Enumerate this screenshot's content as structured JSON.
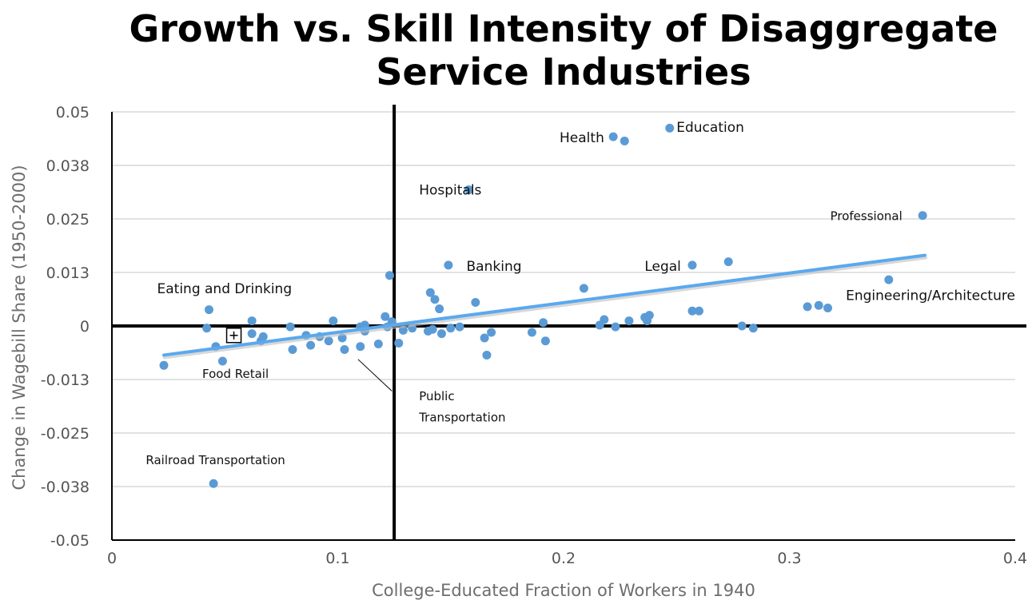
{
  "chart_data": {
    "type": "scatter",
    "title_lines": [
      "Growth vs. Skill Intensity of Disaggregate",
      "Service Industries"
    ],
    "xlabel": "College-Educated Fraction of Workers in 1940",
    "ylabel": "Change in Wagebill Share (1950-2000)",
    "xlim": [
      0,
      0.4
    ],
    "ylim": [
      -0.05,
      0.05
    ],
    "x_ticks": [
      0,
      0.1,
      0.2,
      0.3,
      0.4
    ],
    "x_tick_labels": [
      "0",
      "0.1",
      "0.2",
      "0.3",
      "0.4"
    ],
    "y_ticks": [
      0.05,
      0.0375,
      0.025,
      0.0125,
      0,
      -0.0125,
      -0.025,
      -0.0375,
      -0.05
    ],
    "y_tick_labels": [
      "0.05",
      "0.038",
      "0.025",
      "0.013",
      "0",
      "-0.013",
      "-0.025",
      "-0.038",
      "-0.05"
    ],
    "reference_lines": {
      "x": 0.125,
      "y": 0
    },
    "trendline": {
      "x": [
        0.023,
        0.36
      ],
      "y": [
        -0.0068,
        0.0165
      ]
    },
    "points": [
      {
        "x": 0.023,
        "y": -0.0092
      },
      {
        "x": 0.042,
        "y": -0.0005
      },
      {
        "x": 0.043,
        "y": 0.0038
      },
      {
        "x": 0.046,
        "y": -0.0048
      },
      {
        "x": 0.049,
        "y": -0.0082
      },
      {
        "x": 0.045,
        "y": -0.0368
      },
      {
        "x": 0.055,
        "y": -0.0022
      },
      {
        "x": 0.062,
        "y": 0.0012
      },
      {
        "x": 0.062,
        "y": -0.0018
      },
      {
        "x": 0.066,
        "y": -0.0035
      },
      {
        "x": 0.067,
        "y": -0.0025
      },
      {
        "x": 0.079,
        "y": -0.0002
      },
      {
        "x": 0.08,
        "y": -0.0055
      },
      {
        "x": 0.086,
        "y": -0.0022
      },
      {
        "x": 0.088,
        "y": -0.0045
      },
      {
        "x": 0.092,
        "y": -0.0025
      },
      {
        "x": 0.096,
        "y": -0.0035
      },
      {
        "x": 0.098,
        "y": 0.0012
      },
      {
        "x": 0.102,
        "y": -0.0028
      },
      {
        "x": 0.103,
        "y": -0.0055
      },
      {
        "x": 0.11,
        "y": -0.0048
      },
      {
        "x": 0.11,
        "y": -0.0002
      },
      {
        "x": 0.112,
        "y": 0.0002
      },
      {
        "x": 0.112,
        "y": -0.0012
      },
      {
        "x": 0.118,
        "y": -0.0042
      },
      {
        "x": 0.121,
        "y": 0.0022
      },
      {
        "x": 0.122,
        "y": -0.0002
      },
      {
        "x": 0.123,
        "y": 0.0118
      },
      {
        "x": 0.124,
        "y": 0.001
      },
      {
        "x": 0.127,
        "y": -0.004
      },
      {
        "x": 0.129,
        "y": -0.001
      },
      {
        "x": 0.133,
        "y": -0.0005
      },
      {
        "x": 0.14,
        "y": -0.0012
      },
      {
        "x": 0.141,
        "y": 0.0078
      },
      {
        "x": 0.142,
        "y": -0.0008
      },
      {
        "x": 0.143,
        "y": 0.0062
      },
      {
        "x": 0.145,
        "y": 0.004
      },
      {
        "x": 0.146,
        "y": -0.0018
      },
      {
        "x": 0.149,
        "y": 0.0142
      },
      {
        "x": 0.15,
        "y": -0.0005
      },
      {
        "x": 0.154,
        "y": -0.0002
      },
      {
        "x": 0.158,
        "y": 0.0318
      },
      {
        "x": 0.161,
        "y": 0.0055
      },
      {
        "x": 0.165,
        "y": -0.0028
      },
      {
        "x": 0.166,
        "y": -0.0068
      },
      {
        "x": 0.168,
        "y": -0.0015
      },
      {
        "x": 0.186,
        "y": -0.0015
      },
      {
        "x": 0.191,
        "y": 0.0008
      },
      {
        "x": 0.192,
        "y": -0.0035
      },
      {
        "x": 0.209,
        "y": 0.0088
      },
      {
        "x": 0.216,
        "y": 0.0002
      },
      {
        "x": 0.218,
        "y": 0.0015
      },
      {
        "x": 0.222,
        "y": 0.0442
      },
      {
        "x": 0.223,
        "y": -0.0002
      },
      {
        "x": 0.227,
        "y": 0.0432
      },
      {
        "x": 0.229,
        "y": 0.0012
      },
      {
        "x": 0.236,
        "y": 0.002
      },
      {
        "x": 0.237,
        "y": 0.0012
      },
      {
        "x": 0.238,
        "y": 0.0025
      },
      {
        "x": 0.247,
        "y": 0.0462
      },
      {
        "x": 0.257,
        "y": 0.0035
      },
      {
        "x": 0.257,
        "y": 0.0142
      },
      {
        "x": 0.26,
        "y": 0.0035
      },
      {
        "x": 0.273,
        "y": 0.015
      },
      {
        "x": 0.279,
        "y": 0.0
      },
      {
        "x": 0.284,
        "y": -0.0005
      },
      {
        "x": 0.308,
        "y": 0.0045
      },
      {
        "x": 0.313,
        "y": 0.0048
      },
      {
        "x": 0.317,
        "y": 0.0042
      },
      {
        "x": 0.344,
        "y": 0.0108
      },
      {
        "x": 0.359,
        "y": 0.0258
      }
    ],
    "annotations": [
      {
        "text": "Education",
        "x": 0.25,
        "y": 0.0465,
        "anchor": "start",
        "size": "normal"
      },
      {
        "text": "Health",
        "x": 0.218,
        "y": 0.044,
        "anchor": "end",
        "size": "normal"
      },
      {
        "text": "Hospitals",
        "x": 0.136,
        "y": 0.0318,
        "anchor": "start",
        "size": "normal"
      },
      {
        "text": "Professional",
        "x": 0.35,
        "y": 0.0258,
        "anchor": "end",
        "size": "small"
      },
      {
        "text": "Banking",
        "x": 0.157,
        "y": 0.014,
        "anchor": "start",
        "size": "normal"
      },
      {
        "text": "Legal",
        "x": 0.252,
        "y": 0.014,
        "anchor": "end",
        "size": "normal"
      },
      {
        "text": "Eating and Drinking",
        "x": 0.02,
        "y": 0.0088,
        "anchor": "start",
        "size": "normal"
      },
      {
        "text": "Engineering/Architecture",
        "x": 0.325,
        "y": 0.0072,
        "anchor": "start",
        "size": "normal"
      },
      {
        "text": "Food Retail",
        "x": 0.04,
        "y": -0.011,
        "anchor": "start",
        "size": "small"
      },
      {
        "text": "Public",
        "x": 0.136,
        "y": -0.0162,
        "anchor": "start",
        "size": "small"
      },
      {
        "text": "Transportation",
        "x": 0.136,
        "y": -0.0212,
        "anchor": "start",
        "size": "small"
      },
      {
        "text": "Railroad Transportation",
        "x": 0.015,
        "y": -0.0312,
        "anchor": "start",
        "size": "small"
      }
    ],
    "leader_line": {
      "from": {
        "x": 0.109,
        "y": -0.0078
      },
      "to": {
        "x": 0.124,
        "y": -0.0152
      }
    },
    "marker_box": {
      "x": 0.054,
      "y": -0.0022
    },
    "colors": {
      "point": "#5b9bd5",
      "trend": "#5aa9ee",
      "axis": "#000000",
      "grid": "#d9d9d9"
    }
  }
}
